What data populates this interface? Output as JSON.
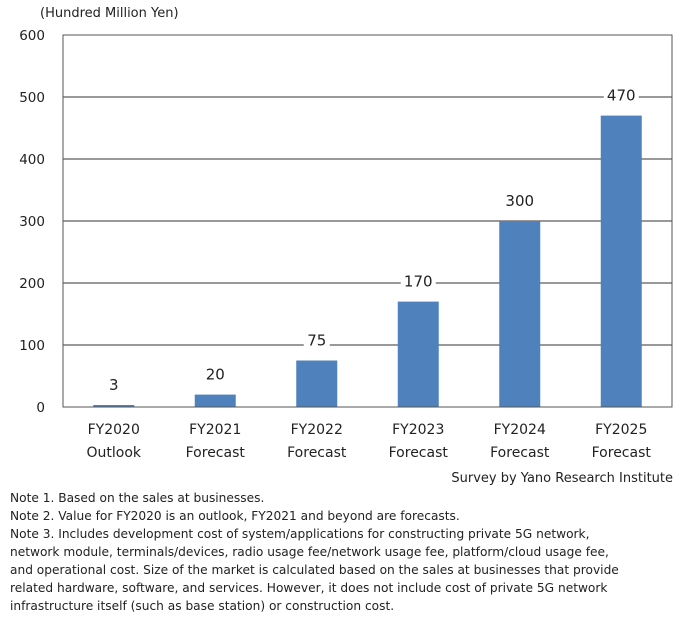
{
  "chart_data": {
    "type": "bar",
    "unit_label": "(Hundred Million Yen)",
    "categories": [
      [
        "FY2020",
        "Outlook"
      ],
      [
        "FY2021",
        "Forecast"
      ],
      [
        "FY2022",
        "Forecast"
      ],
      [
        "FY2023",
        "Forecast"
      ],
      [
        "FY2024",
        "Forecast"
      ],
      [
        "FY2025",
        "Forecast"
      ]
    ],
    "values": [
      3,
      20,
      75,
      170,
      300,
      470
    ],
    "ylim": [
      0,
      600
    ],
    "yticks": [
      0,
      100,
      200,
      300,
      400,
      500,
      600
    ],
    "grid": true,
    "bar_color": "#4f81bd"
  },
  "source": "Survey by Yano Research Institute",
  "notes": [
    "Note 1.  Based on the sales at businesses.",
    "Note 2.  Value for FY2020 is an outlook, FY2021 and beyond are forecasts.",
    "Note 3.  Includes development cost of system/applications for constructing private 5G network,",
    "network module, terminals/devices, radio usage fee/network usage fee, platform/cloud usage fee,",
    "and operational cost. Size of the market is calculated based on the sales at businesses that provide",
    "related hardware, software, and services. However, it does not include cost of private 5G network",
    "infrastructure itself (such as base station) or construction cost."
  ]
}
